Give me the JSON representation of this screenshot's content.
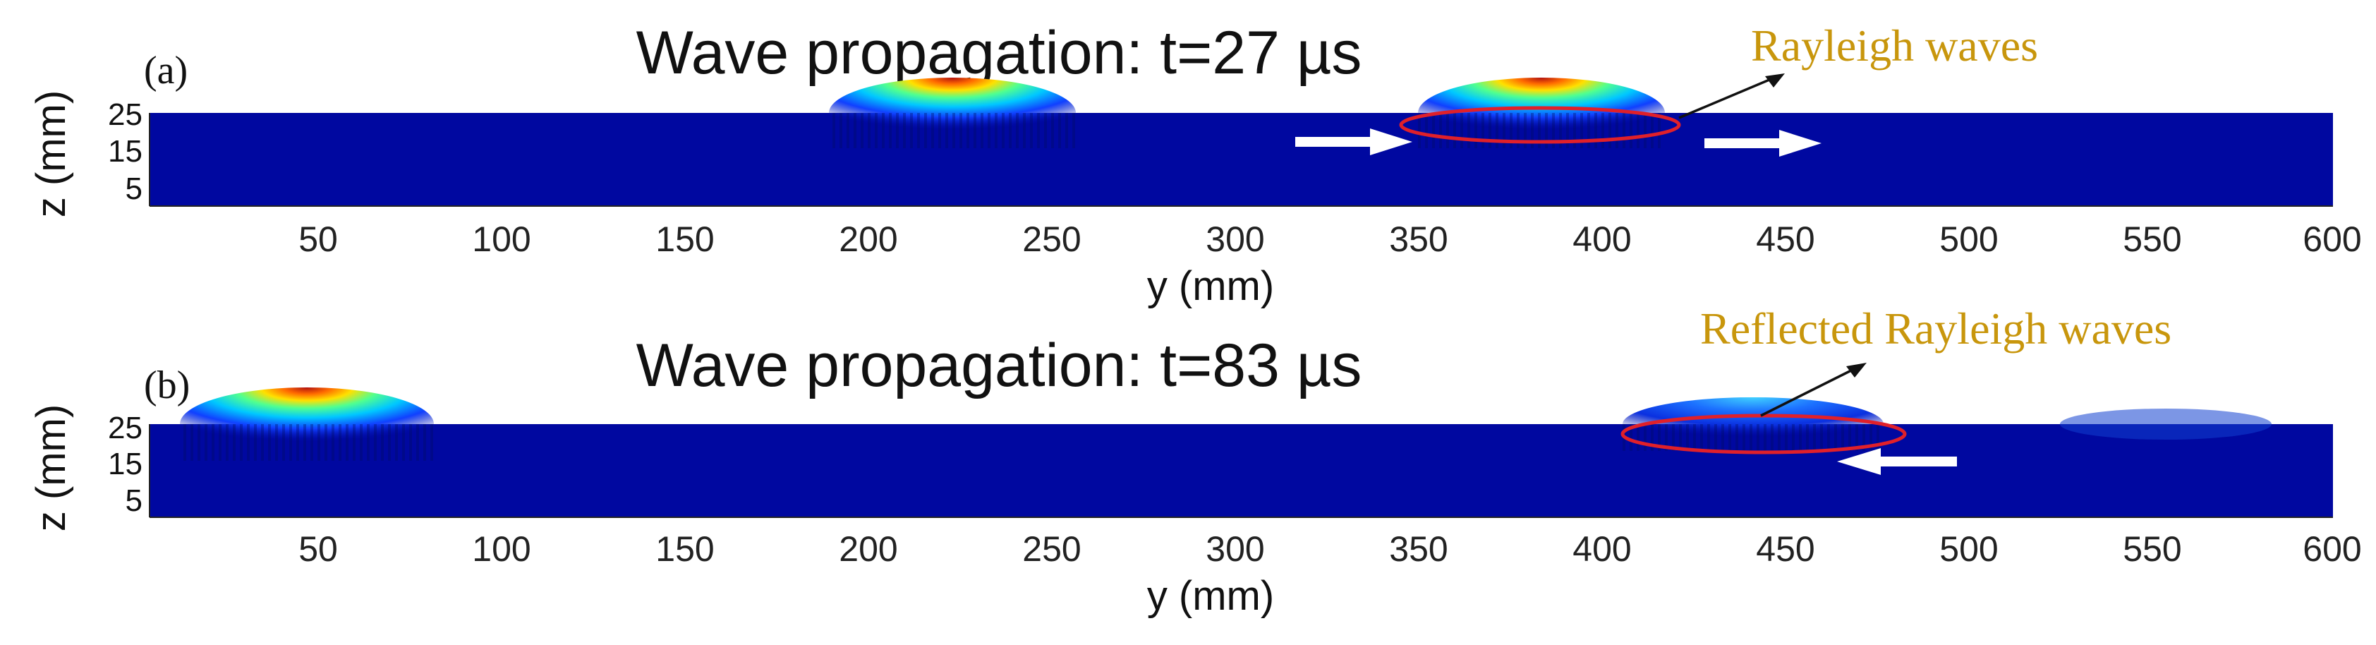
{
  "figure": {
    "panels": [
      {
        "label": "(a)",
        "title": "Wave propagation: t=27 µs",
        "annotation": "Rayleigh waves",
        "xlabel": "y (mm)",
        "ylabel": "z (mm)",
        "xticks": [
          "50",
          "100",
          "150",
          "200",
          "250",
          "300",
          "350",
          "400",
          "450",
          "500",
          "550",
          "600"
        ],
        "yticks": [
          "25",
          "15",
          "5"
        ],
        "wave_packets_y_mm": [
          220,
          385
        ],
        "highlighted_packet_y_mm": 385,
        "arrow_direction": "right"
      },
      {
        "label": "(b)",
        "title": "Wave propagation: t=83 µs",
        "annotation": "Reflected Rayleigh waves",
        "xlabel": "y (mm)",
        "ylabel": "z (mm)",
        "xticks": [
          "50",
          "100",
          "150",
          "200",
          "250",
          "300",
          "350",
          "400",
          "450",
          "500",
          "550",
          "600"
        ],
        "yticks": [
          "25",
          "15",
          "5"
        ],
        "wave_packets_y_mm": [
          55,
          445
        ],
        "highlighted_packet_y_mm": 445,
        "arrow_direction": "left"
      }
    ],
    "colors": {
      "field_background": "#0008a0",
      "highlight_ellipse": "#e0202a",
      "annotation_text": "#c8960c",
      "arrow_fill": "#ffffff"
    }
  },
  "chart_data": [
    {
      "type": "heatmap",
      "title": "Wave propagation: t=27 µs",
      "xlabel": "y (mm)",
      "ylabel": "z (mm)",
      "xlim": [
        0,
        600
      ],
      "ylim": [
        0,
        30
      ],
      "xticks": [
        50,
        100,
        150,
        200,
        250,
        300,
        350,
        400,
        450,
        500,
        550,
        600
      ],
      "yticks": [
        5,
        15,
        25
      ],
      "features": [
        {
          "type": "surface wave packet",
          "y_center_mm": 220,
          "z_surface_mm": 30
        },
        {
          "type": "surface wave packet",
          "y_center_mm": 385,
          "z_surface_mm": 30,
          "annotation": "Rayleigh waves",
          "direction": "+y"
        }
      ]
    },
    {
      "type": "heatmap",
      "title": "Wave propagation: t=83 µs",
      "xlabel": "y (mm)",
      "ylabel": "z (mm)",
      "xlim": [
        0,
        600
      ],
      "ylim": [
        0,
        30
      ],
      "xticks": [
        50,
        100,
        150,
        200,
        250,
        300,
        350,
        400,
        450,
        500,
        550,
        600
      ],
      "yticks": [
        5,
        15,
        25
      ],
      "features": [
        {
          "type": "surface wave packet",
          "y_center_mm": 55,
          "z_surface_mm": 30
        },
        {
          "type": "surface wave packet",
          "y_center_mm": 445,
          "z_surface_mm": 30,
          "annotation": "Reflected Rayleigh waves",
          "direction": "-y"
        }
      ]
    }
  ]
}
